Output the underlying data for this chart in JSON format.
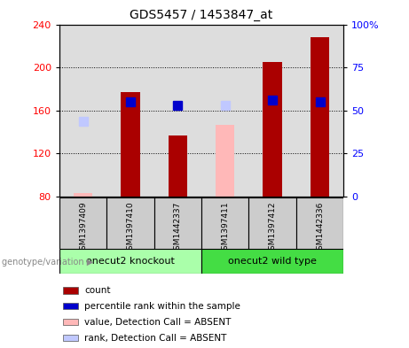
{
  "title": "GDS5457 / 1453847_at",
  "samples": [
    "GSM1397409",
    "GSM1397410",
    "GSM1442337",
    "GSM1397411",
    "GSM1397412",
    "GSM1442336"
  ],
  "count_values": [
    null,
    177,
    137,
    null,
    205,
    228
  ],
  "count_absent_values": [
    83,
    null,
    null,
    147,
    null,
    null
  ],
  "rank_values": [
    null,
    168,
    165,
    null,
    170,
    168
  ],
  "rank_absent_values": [
    150,
    null,
    null,
    165,
    null,
    null
  ],
  "ylim_left": [
    80,
    240
  ],
  "ylim_right": [
    0,
    100
  ],
  "yticks_left": [
    80,
    120,
    160,
    200,
    240
  ],
  "yticks_right": [
    0,
    25,
    50,
    75,
    100
  ],
  "bar_color": "#aa0000",
  "bar_absent_color": "#ffb8b8",
  "rank_color": "#0000cc",
  "rank_absent_color": "#c0c8ff",
  "group1_label": "onecut2 knockout",
  "group2_label": "onecut2 wild type",
  "group1_color": "#aaffaa",
  "group2_color": "#44dd44",
  "group_label_prefix": "genotype/variation",
  "legend_items": [
    {
      "label": "count",
      "color": "#aa0000"
    },
    {
      "label": "percentile rank within the sample",
      "color": "#0000cc"
    },
    {
      "label": "value, Detection Call = ABSENT",
      "color": "#ffb8b8"
    },
    {
      "label": "rank, Detection Call = ABSENT",
      "color": "#c0c8ff"
    }
  ],
  "bar_width": 0.4,
  "rank_marker_size": 7,
  "background_color": "#ffffff",
  "plot_bg_color": "#dddddd"
}
